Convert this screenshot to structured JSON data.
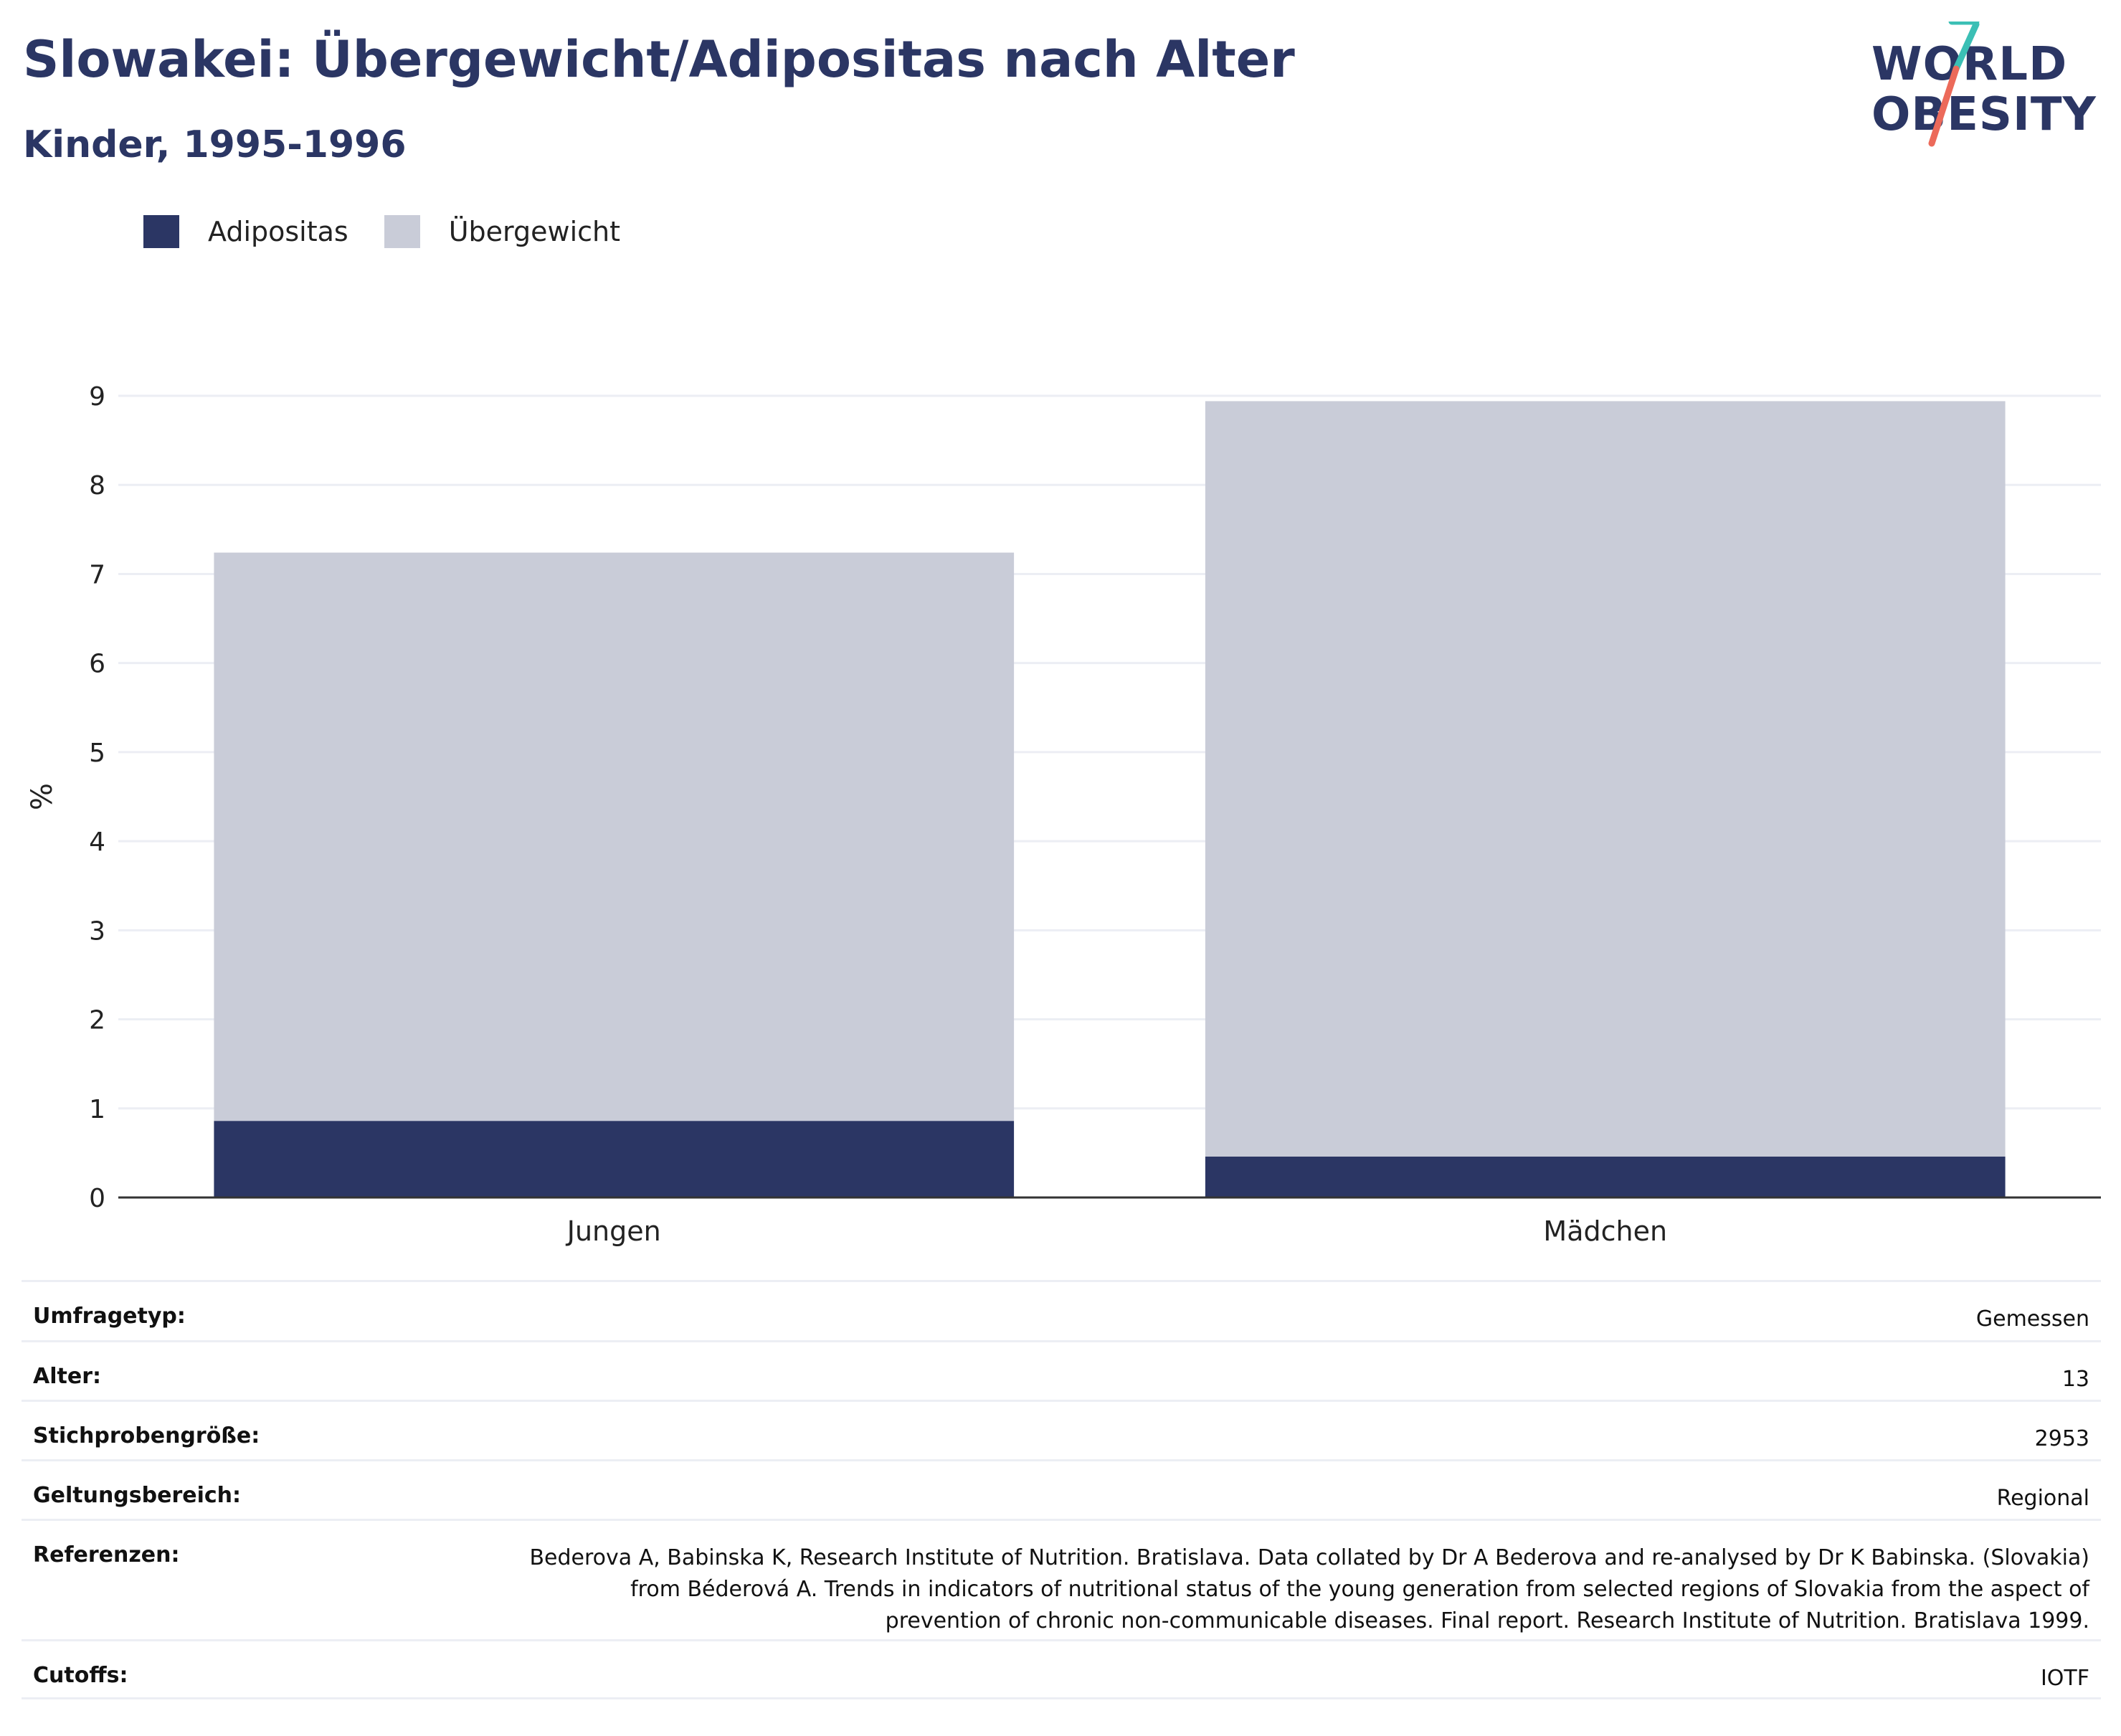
{
  "header": {
    "title": "Slowakei: Übergewicht/Adipositas nach Alter",
    "subtitle": "Kinder, 1995-1996"
  },
  "logo": {
    "line1": "WORLD",
    "line2": "OBESITY"
  },
  "legend": [
    {
      "label": "Adipositas",
      "color": "#2b3664"
    },
    {
      "label": "Übergewicht",
      "color": "#c9ccd8"
    }
  ],
  "chart_data": {
    "type": "bar",
    "stacked": true,
    "categories": [
      "Jungen",
      "Mädchen"
    ],
    "series": [
      {
        "name": "Adipositas",
        "values": [
          0.86,
          0.46
        ],
        "color": "#2b3664"
      },
      {
        "name": "Übergewicht",
        "values": [
          6.38,
          8.48
        ],
        "color": "#c9ccd8"
      }
    ],
    "ylabel": "%",
    "xlabel": "",
    "ylim": [
      0,
      9
    ],
    "yticks": [
      0,
      1,
      2,
      3,
      4,
      5,
      6,
      7,
      8,
      9
    ],
    "grid": true,
    "legend_position": "top-left"
  },
  "meta": [
    {
      "key": "Umfragetyp:",
      "value": "Gemessen"
    },
    {
      "key": "Alter:",
      "value": "13"
    },
    {
      "key": "Stichprobengröße:",
      "value": "2953"
    },
    {
      "key": "Geltungsbereich:",
      "value": "Regional"
    },
    {
      "key": "Referenzen:",
      "value": "Bederova A, Babinska K, Research Institute of Nutrition. Bratislava. Data collated by Dr A Bederova and re-analysed by Dr K Babinska. (Slovakia) from Béderová A. Trends in indicators of nutritional status of the young generation from selected regions of Slovakia from the aspect of prevention of chronic non-communicable diseases. Final report. Research Institute of Nutrition. Bratislava 1999."
    },
    {
      "key": "Cutoffs:",
      "value": "IOTF"
    }
  ]
}
